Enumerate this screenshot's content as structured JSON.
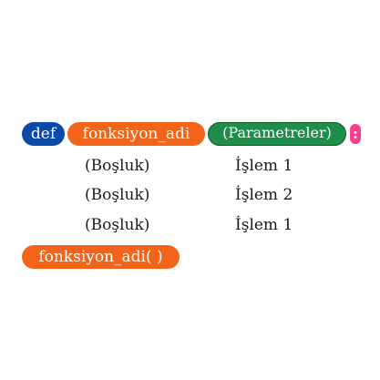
{
  "header": {
    "keyword": "def",
    "function_name": "fonksiyon_adi",
    "parameters": "(Parametreler)",
    "colon": ":"
  },
  "body_rows": [
    {
      "spacer": "(Boşluk)",
      "statement": "İşlem 1"
    },
    {
      "spacer": "(Boşluk)",
      "statement": "İşlem 2"
    },
    {
      "spacer": "(Boşluk)",
      "statement": "İşlem 1"
    }
  ],
  "call": {
    "label": "fonksiyon_adi( )"
  },
  "colors": {
    "keyword": "#0b4aa8",
    "function_name": "#f26419",
    "parameters": "#1e8e4a",
    "colon": "#ff3d8b",
    "text": "#1a1a1a"
  }
}
